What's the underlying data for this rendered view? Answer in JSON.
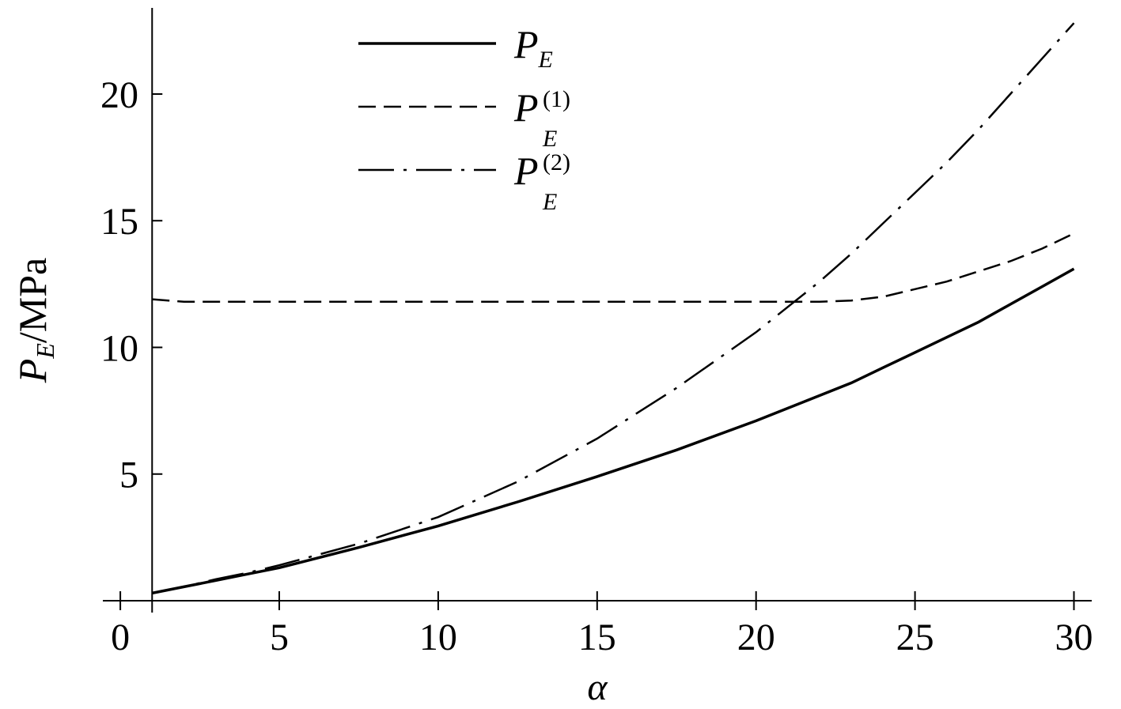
{
  "chart_data": {
    "type": "line",
    "xlabel": "α",
    "ylabel": {
      "text": "P",
      "sub": "E",
      "rest": "/MPa"
    },
    "x": [
      1,
      2,
      3,
      4,
      5,
      7.5,
      10,
      12.5,
      15,
      17.5,
      20,
      22,
      23,
      24,
      25,
      26,
      27,
      28,
      29,
      30
    ],
    "series": [
      {
        "name": "P",
        "sub": "E",
        "sup": null,
        "style": "solid",
        "color": "#000000",
        "values": [
          0.3,
          0.55,
          0.8,
          1.05,
          1.3,
          2.1,
          2.95,
          3.9,
          4.9,
          5.95,
          7.1,
          8.1,
          8.6,
          9.2,
          9.8,
          10.4,
          11.0,
          11.7,
          12.4,
          13.1
        ]
      },
      {
        "name": "P",
        "sub": "E",
        "sup": "(1)",
        "style": "dashed",
        "color": "#000000",
        "values": [
          11.9,
          11.8,
          11.8,
          11.8,
          11.8,
          11.8,
          11.8,
          11.8,
          11.8,
          11.8,
          11.8,
          11.8,
          11.85,
          12.0,
          12.3,
          12.6,
          13.0,
          13.4,
          13.9,
          14.5
        ]
      },
      {
        "name": "P",
        "sub": "E",
        "sup": "(2)",
        "style": "dashdot",
        "color": "#000000",
        "values": [
          0.3,
          0.55,
          0.85,
          1.1,
          1.4,
          2.25,
          3.3,
          4.7,
          6.4,
          8.4,
          10.6,
          12.6,
          13.7,
          14.9,
          16.1,
          17.3,
          18.6,
          20.0,
          21.4,
          22.8
        ]
      }
    ],
    "xlim": [
      -0.55,
      30.56
    ],
    "ylim": [
      0,
      23.4
    ],
    "xticks": [
      0,
      5,
      10,
      15,
      20,
      25,
      30
    ],
    "yticks": [
      5,
      10,
      15,
      20
    ],
    "y_axis_at": 1,
    "grid": false
  }
}
